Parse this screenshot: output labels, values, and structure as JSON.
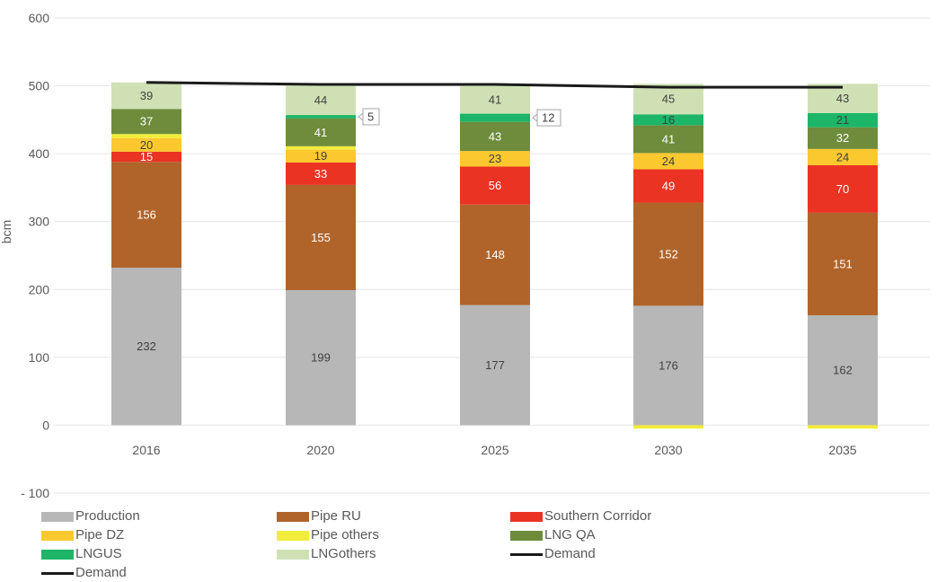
{
  "chart_data": {
    "type": "bar",
    "stacked": true,
    "ylabel": "bcm",
    "ylim": [
      -100,
      600
    ],
    "yticks": [
      600,
      500,
      400,
      300,
      200,
      100,
      0,
      -100
    ],
    "ytick_labels": [
      "600",
      "500",
      "400",
      "300",
      "200",
      "100",
      "0",
      "- 100"
    ],
    "categories": [
      "2016",
      "2020",
      "2025",
      "2030",
      "2035"
    ],
    "grid": true,
    "legend_position": "bottom",
    "series": [
      {
        "name": "Production",
        "color": "#b7b7b7",
        "values": [
          232,
          199,
          177,
          176,
          162
        ],
        "labels": [
          "232",
          "199",
          "177",
          "176",
          "162"
        ],
        "label_color": "#404040"
      },
      {
        "name": "Pipe RU",
        "color": "#b0642a",
        "values": [
          156,
          155,
          148,
          152,
          151
        ],
        "labels": [
          "156",
          "155",
          "148",
          "152",
          "151"
        ],
        "label_color": "#ffffff"
      },
      {
        "name": "Southern Corridor",
        "color": "#ea3323",
        "values": [
          15,
          33,
          56,
          49,
          70
        ],
        "labels": [
          "15",
          "33",
          "56",
          "49",
          "70"
        ],
        "label_color": "#ffffff"
      },
      {
        "name": "Pipe DZ",
        "color": "#fbc82f",
        "values": [
          20,
          19,
          23,
          24,
          24
        ],
        "labels": [
          "20",
          "19",
          "23",
          "24",
          "24"
        ],
        "label_color": "#404040"
      },
      {
        "name": "Pipe others",
        "color": "#f2ec3a",
        "values": [
          6,
          5,
          0,
          -5,
          -5
        ],
        "labels": [
          "",
          "",
          "",
          "",
          ""
        ],
        "label_color": "#404040"
      },
      {
        "name": "LNG QA",
        "color": "#6e8c3b",
        "values": [
          37,
          41,
          43,
          41,
          32
        ],
        "labels": [
          "37",
          "41",
          "43",
          "41",
          "32"
        ],
        "label_color": "#ffffff"
      },
      {
        "name": "LNG US",
        "color": "#1db567",
        "values": [
          0,
          5,
          12,
          16,
          21
        ],
        "labels": [
          "",
          "",
          "",
          "16",
          "21"
        ],
        "label_color": "#404040"
      },
      {
        "name": "LNG others",
        "color": "#cfe1b4",
        "values": [
          39,
          44,
          41,
          45,
          43
        ],
        "labels": [
          "39",
          "44",
          "41",
          "45",
          "43"
        ],
        "label_color": "#404040"
      }
    ],
    "callouts": [
      {
        "category": "2020",
        "text": "5"
      },
      {
        "category": "2025",
        "text": "12"
      }
    ],
    "line_series": {
      "name": "Demand",
      "color": "#1a1a1a",
      "values": [
        505,
        502,
        502,
        498,
        498
      ]
    },
    "legend": [
      {
        "label": "Production",
        "color": "#b7b7b7",
        "kind": "box"
      },
      {
        "label": "Pipe RU",
        "color": "#b0642a",
        "kind": "box"
      },
      {
        "label": "Southern Corridor",
        "color": "#ea3323",
        "kind": "box"
      },
      {
        "label": "Pipe DZ",
        "color": "#fbc82f",
        "kind": "box"
      },
      {
        "label": "Pipe others",
        "color": "#f2ec3a",
        "kind": "box"
      },
      {
        "label": "LNG QA",
        "color": "#6e8c3b",
        "kind": "box"
      },
      {
        "label": "LNGUS",
        "color": "#1db567",
        "kind": "box"
      },
      {
        "label": "LNGothers",
        "color": "#cfe1b4",
        "kind": "box"
      },
      {
        "label": "Demand",
        "color": "#1a1a1a",
        "kind": "line"
      },
      {
        "label": "Demand",
        "color": "#1a1a1a",
        "kind": "line"
      }
    ]
  }
}
